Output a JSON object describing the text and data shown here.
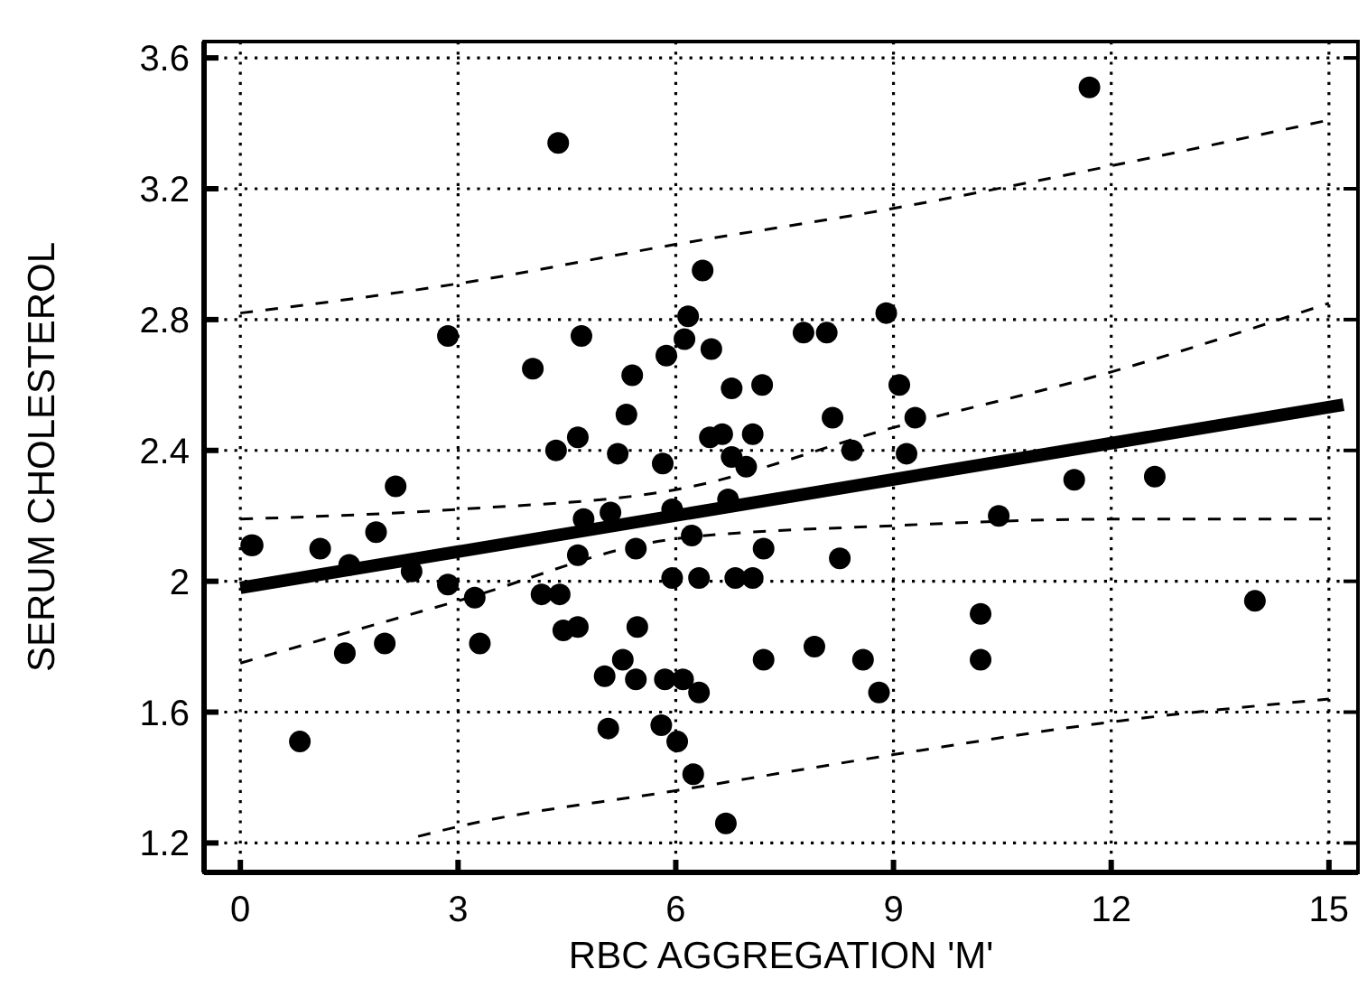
{
  "chart_data": {
    "type": "scatter",
    "xlabel": "RBC AGGREGATION 'M'",
    "ylabel": "SERUM CHOLESTEROL",
    "xlim": [
      -0.5,
      15.4
    ],
    "ylim": [
      1.11,
      3.65
    ],
    "xticks": [
      0,
      3,
      6,
      9,
      12,
      15
    ],
    "yticks": [
      1.2,
      1.6,
      2,
      2.4,
      2.8,
      3.2,
      3.6
    ],
    "grid": true,
    "series": [
      {
        "marker": "circle",
        "color": "#000000",
        "x": [
          0.15,
          0.17,
          1.1,
          1.87,
          2.14,
          1.5,
          2.36,
          2.86,
          3.23,
          3.3,
          1.44,
          1.99,
          0.82,
          4.15,
          4.4,
          4.45,
          4.65,
          5.47,
          5.02,
          5.27,
          5.45,
          5.85,
          6.1,
          6.32,
          5.07,
          5.8,
          6.02,
          6.24,
          6.69,
          7.21,
          4.35,
          4.65,
          5.2,
          5.82,
          6.47,
          6.77,
          6.97,
          4.73,
          5.1,
          4.65,
          5.45,
          5.95,
          6.22,
          6.72,
          7.21,
          5.95,
          6.32,
          6.82,
          7.06,
          8.43,
          9.18,
          8.26,
          11.49,
          12.6,
          10.45,
          10.2,
          10.2,
          13.98,
          7.91,
          8.58,
          8.8,
          4.38,
          6.37,
          6.17,
          6.12,
          2.86,
          4.7,
          4.03,
          5.87,
          6.49,
          5.4,
          6.77,
          7.19,
          5.32,
          6.64,
          7.06,
          11.7,
          8.9,
          7.76,
          8.08,
          9.08,
          9.3,
          8.16
        ],
        "values": [
          2.11,
          2.11,
          2.1,
          2.15,
          2.29,
          2.05,
          2.03,
          1.99,
          1.95,
          1.81,
          1.78,
          1.81,
          1.51,
          1.96,
          1.96,
          1.85,
          1.86,
          1.86,
          1.71,
          1.76,
          1.7,
          1.7,
          1.7,
          1.66,
          1.55,
          1.56,
          1.51,
          1.41,
          1.26,
          1.76,
          2.4,
          2.44,
          2.39,
          2.36,
          2.44,
          2.38,
          2.35,
          2.19,
          2.21,
          2.08,
          2.1,
          2.22,
          2.14,
          2.25,
          2.1,
          2.01,
          2.01,
          2.01,
          2.01,
          2.4,
          2.39,
          2.07,
          2.31,
          2.32,
          2.2,
          1.9,
          1.76,
          1.94,
          1.8,
          1.76,
          1.66,
          3.34,
          2.95,
          2.81,
          2.74,
          2.75,
          2.75,
          2.65,
          2.69,
          2.71,
          2.63,
          2.59,
          2.6,
          2.51,
          2.45,
          2.45,
          3.51,
          2.82,
          2.76,
          2.76,
          2.6,
          2.5,
          2.5
        ]
      },
      {
        "type": "line",
        "color": "#000000",
        "line_style": "solid",
        "x": [
          0,
          15.2
        ],
        "values": [
          1.98,
          2.54
        ]
      },
      {
        "type": "line",
        "color": "#000000",
        "line_style": "dashed",
        "x": [
          0,
          3,
          6,
          9,
          12,
          15
        ],
        "values": [
          2.19,
          2.22,
          2.28,
          2.47,
          2.64,
          2.85
        ]
      },
      {
        "type": "line",
        "color": "#000000",
        "line_style": "dashed",
        "x": [
          0,
          3,
          6,
          9,
          12,
          15
        ],
        "values": [
          1.75,
          1.94,
          2.13,
          2.17,
          2.19,
          2.19
        ]
      },
      {
        "type": "line",
        "color": "#000000",
        "line_style": "dashed",
        "x": [
          0,
          3,
          6,
          9,
          12,
          15
        ],
        "values": [
          2.82,
          2.91,
          3.03,
          3.14,
          3.27,
          3.41
        ]
      },
      {
        "type": "line",
        "color": "#000000",
        "line_style": "dashed",
        "x": [
          2.45,
          3,
          6,
          9,
          12,
          15
        ],
        "values": [
          1.22,
          1.25,
          1.36,
          1.47,
          1.57,
          1.64
        ]
      }
    ]
  }
}
